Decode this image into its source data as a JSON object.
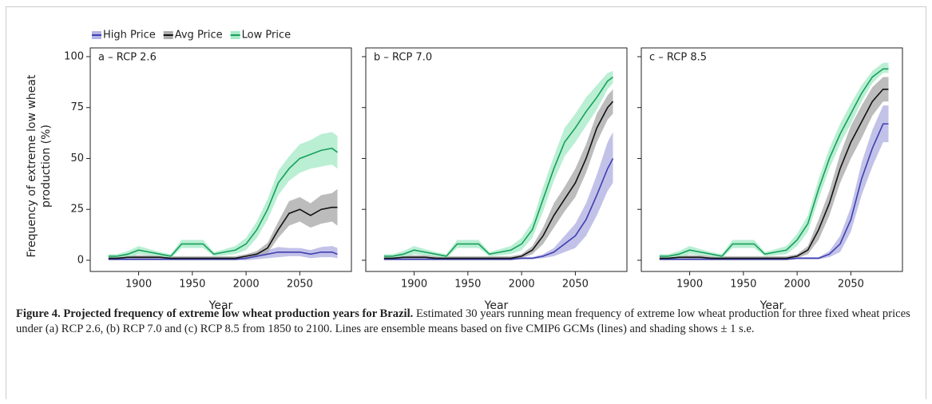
{
  "legend": [
    {
      "name": "High Price",
      "color": "#3f3fb0",
      "band_color": "#b3b3e3"
    },
    {
      "name": "Avg Price",
      "color": "#111111",
      "band_color": "#ababab"
    },
    {
      "name": "Low Price",
      "color": "#16a05a",
      "band_color": "#a9ebc9"
    }
  ],
  "chart_data": [
    {
      "type": "line",
      "title": "a – RCP 2.6",
      "xlabel": "Year",
      "ylabel": "Frequency of extreme low wheat production (%)",
      "ytick_labels": true,
      "x": [
        1872,
        1880,
        1890,
        1900,
        1910,
        1920,
        1930,
        1940,
        1950,
        1960,
        1970,
        1980,
        1990,
        2000,
        2010,
        2020,
        2030,
        2040,
        2050,
        2060,
        2070,
        2080,
        2085
      ],
      "xlim": [
        1855,
        2098
      ],
      "ylim": [
        -5.5,
        104.3
      ],
      "xticks": [
        1900,
        1950,
        2000,
        2050
      ],
      "yticks": [
        0,
        25,
        50,
        75,
        100
      ],
      "series": [
        {
          "values": [
            0.5,
            0.5,
            0.5,
            0.5,
            0.5,
            0.5,
            0.5,
            0.5,
            0.5,
            0.5,
            0.5,
            0.5,
            0.5,
            1,
            2,
            3,
            4,
            4,
            4,
            3,
            4,
            4,
            3
          ],
          "lower": [
            0,
            0,
            0,
            0,
            0,
            0,
            0,
            0,
            0,
            0,
            0,
            0,
            0,
            0,
            0.5,
            1,
            1.5,
            2,
            2,
            1,
            1.5,
            1.5,
            1
          ],
          "upper": [
            1,
            1,
            1,
            1,
            1,
            1,
            1,
            1,
            1,
            1,
            1,
            1,
            1,
            2,
            3.5,
            5,
            6.5,
            6,
            6,
            5,
            6.5,
            7,
            6
          ]
        },
        {
          "values": [
            1,
            1,
            1.5,
            1.5,
            1.5,
            1.5,
            1,
            1,
            1,
            1,
            1,
            1,
            1,
            2,
            3,
            6,
            15,
            23,
            25,
            22,
            25,
            26,
            26
          ],
          "lower": [
            0,
            0,
            0.5,
            0.5,
            0.5,
            0.5,
            0,
            0,
            0,
            0,
            0,
            0,
            0,
            1,
            1.5,
            3.5,
            11,
            17,
            19,
            16,
            18,
            19,
            17
          ],
          "upper": [
            2,
            2,
            2.5,
            2.5,
            2.5,
            2.5,
            2,
            2,
            2,
            2,
            2,
            2,
            2,
            3,
            4.5,
            8.5,
            19,
            29,
            31,
            28,
            32,
            33,
            35
          ]
        },
        {
          "values": [
            2,
            2,
            3,
            5,
            4,
            3,
            2,
            8,
            8,
            8,
            3,
            4,
            5,
            8,
            15,
            25,
            38,
            45,
            50,
            52,
            54,
            55,
            53
          ],
          "lower": [
            1,
            1,
            1.5,
            3,
            2.5,
            2,
            1,
            6,
            6,
            6,
            2,
            2.5,
            3,
            5,
            11,
            20,
            32,
            39,
            43,
            45,
            46,
            47,
            45
          ],
          "upper": [
            3,
            3,
            4.5,
            7,
            5.5,
            4,
            3,
            10,
            10,
            10,
            4,
            5.5,
            7,
            11,
            19,
            30,
            44,
            51,
            57,
            59,
            62,
            63,
            61
          ]
        }
      ]
    },
    {
      "type": "line",
      "title": "b – RCP 7.0",
      "xlabel": "Year",
      "ytick_labels": false,
      "x": [
        1872,
        1880,
        1890,
        1900,
        1910,
        1920,
        1930,
        1940,
        1950,
        1960,
        1970,
        1980,
        1990,
        2000,
        2010,
        2020,
        2030,
        2040,
        2050,
        2060,
        2070,
        2080,
        2085
      ],
      "xlim": [
        1855,
        2098
      ],
      "ylim": [
        -5.5,
        104.3
      ],
      "xticks": [
        1900,
        1950,
        2000,
        2050
      ],
      "yticks": [
        0,
        25,
        50,
        75,
        100
      ],
      "series": [
        {
          "values": [
            0.5,
            0.5,
            0.5,
            0.5,
            0.5,
            0.5,
            0.5,
            0.5,
            0.5,
            0.5,
            0.5,
            0.5,
            0.5,
            1,
            1,
            2,
            4,
            8,
            12,
            20,
            32,
            45,
            50
          ],
          "lower": [
            0,
            0,
            0,
            0,
            0,
            0,
            0,
            0,
            0,
            0,
            0,
            0,
            0,
            0.5,
            0.5,
            1,
            2,
            4,
            6,
            12,
            22,
            34,
            38
          ],
          "upper": [
            1,
            1,
            1,
            1,
            1,
            1,
            1,
            1,
            1,
            1,
            1,
            1,
            1,
            1.5,
            1.5,
            3,
            6,
            12,
            18,
            28,
            42,
            58,
            63
          ]
        },
        {
          "values": [
            1,
            1,
            1.5,
            1.5,
            1.5,
            1,
            1,
            1,
            1,
            1,
            1,
            1,
            1,
            2,
            5,
            12,
            22,
            30,
            38,
            50,
            65,
            75,
            78
          ],
          "lower": [
            0,
            0,
            0.5,
            0.5,
            0.5,
            0,
            0,
            0,
            0,
            0,
            0,
            0,
            0,
            1,
            3,
            8,
            16,
            24,
            31,
            43,
            58,
            69,
            72
          ],
          "upper": [
            2,
            2,
            2.5,
            2.5,
            2.5,
            2,
            2,
            2,
            2,
            2,
            2,
            2,
            2,
            3,
            7,
            16,
            28,
            36,
            45,
            57,
            72,
            81,
            84
          ]
        },
        {
          "values": [
            2,
            2,
            3,
            5,
            4,
            3,
            2,
            8,
            8,
            8,
            3,
            4,
            5,
            8,
            15,
            30,
            45,
            58,
            65,
            73,
            80,
            88,
            90
          ],
          "lower": [
            1,
            1,
            1.5,
            3,
            2.5,
            2,
            1,
            6,
            6,
            6,
            2,
            2.5,
            3,
            5,
            11,
            24,
            39,
            51,
            58,
            66,
            74,
            84,
            87
          ],
          "upper": [
            3,
            3,
            4.5,
            7,
            5.5,
            4,
            3,
            10,
            10,
            10,
            4,
            5.5,
            7,
            11,
            19,
            36,
            51,
            65,
            72,
            80,
            86,
            92,
            93
          ]
        }
      ]
    },
    {
      "type": "line",
      "title": "c – RCP 8.5",
      "xlabel": "Year",
      "ytick_labels": false,
      "x": [
        1872,
        1880,
        1890,
        1900,
        1910,
        1920,
        1930,
        1940,
        1950,
        1960,
        1970,
        1980,
        1990,
        2000,
        2010,
        2020,
        2030,
        2040,
        2050,
        2060,
        2070,
        2080,
        2085
      ],
      "xlim": [
        1855,
        2098
      ],
      "ylim": [
        -5.5,
        104.3
      ],
      "xticks": [
        1900,
        1950,
        2000,
        2050
      ],
      "yticks": [
        0,
        25,
        50,
        75,
        100
      ],
      "series": [
        {
          "values": [
            0.5,
            0.5,
            0.5,
            0.5,
            0.5,
            0.5,
            0.5,
            0.5,
            0.5,
            0.5,
            0.5,
            0.5,
            0.5,
            1,
            1,
            1,
            3,
            8,
            20,
            40,
            55,
            67,
            67
          ],
          "lower": [
            0,
            0,
            0,
            0,
            0,
            0,
            0,
            0,
            0,
            0,
            0,
            0,
            0,
            0.5,
            0.5,
            0.5,
            1.5,
            4,
            14,
            32,
            46,
            58,
            58
          ],
          "upper": [
            1,
            1,
            1,
            1,
            1,
            1,
            1,
            1,
            1,
            1,
            1,
            1,
            1,
            1.5,
            1.5,
            1.5,
            4.5,
            12,
            26,
            48,
            64,
            76,
            76
          ]
        },
        {
          "values": [
            1,
            1,
            1.5,
            1.5,
            1.5,
            1,
            1,
            1,
            1,
            1,
            1,
            1,
            1,
            2,
            5,
            15,
            28,
            45,
            58,
            68,
            78,
            84,
            84
          ],
          "lower": [
            0,
            0,
            0.5,
            0.5,
            0.5,
            0,
            0,
            0,
            0,
            0,
            0,
            0,
            0,
            1,
            3,
            10,
            22,
            38,
            50,
            60,
            71,
            78,
            78
          ],
          "upper": [
            2,
            2,
            2.5,
            2.5,
            2.5,
            2,
            2,
            2,
            2,
            2,
            2,
            2,
            2,
            3,
            7,
            20,
            34,
            52,
            66,
            76,
            85,
            90,
            90
          ]
        },
        {
          "values": [
            2,
            2,
            3,
            5,
            4,
            3,
            2,
            8,
            8,
            8,
            3,
            4,
            5,
            10,
            18,
            35,
            50,
            62,
            72,
            82,
            90,
            94,
            94
          ],
          "lower": [
            1,
            1,
            1.5,
            3,
            2.5,
            2,
            1,
            6,
            6,
            6,
            2,
            2.5,
            3,
            7,
            14,
            30,
            45,
            57,
            67,
            78,
            87,
            92,
            92
          ],
          "upper": [
            3,
            3,
            4.5,
            7,
            5.5,
            4,
            3,
            10,
            10,
            10,
            4,
            5.5,
            7,
            13,
            22,
            40,
            55,
            67,
            77,
            86,
            93,
            97,
            97
          ]
        }
      ]
    }
  ],
  "caption": {
    "title": "Figure 4. Projected frequency of extreme low wheat production years for Brazil.",
    "text": "Estimated 30 years running mean frequency of extreme low wheat production for three fixed wheat prices under (a) RCP 2.6, (b) RCP 7.0 and (c) RCP 8.5 from 1850 to 2100. Lines are ensemble means based on five CMIP6 GCMs (lines) and shading shows ± 1 s.e."
  }
}
